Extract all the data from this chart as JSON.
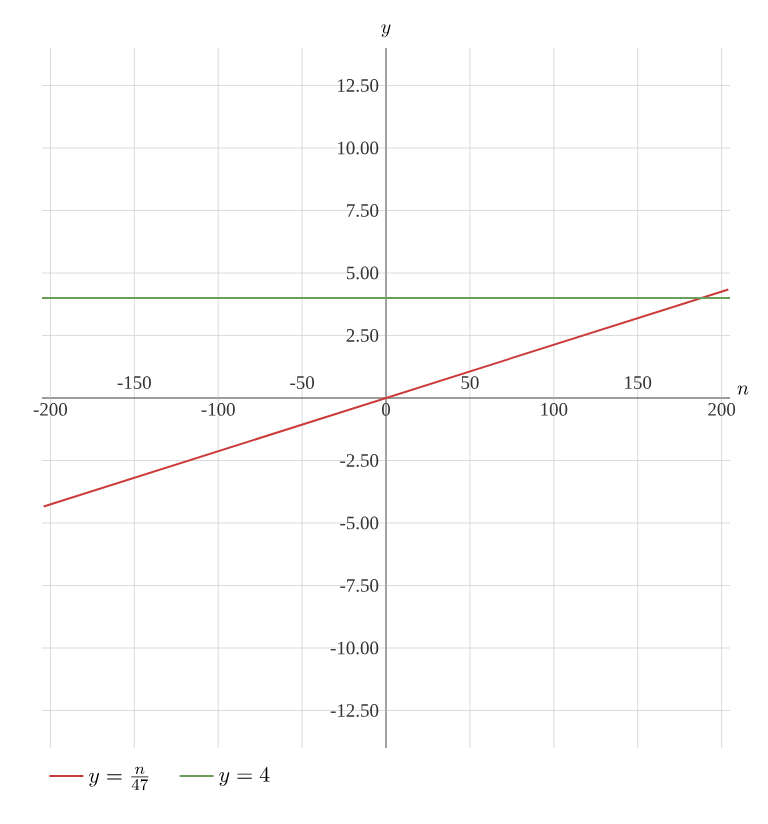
{
  "chart_data": {
    "type": "line",
    "xlabel": "n",
    "ylabel": "y",
    "xlim": [
      -205,
      205
    ],
    "ylim": [
      -14,
      14
    ],
    "xticks": [
      -200,
      -100,
      0,
      100,
      200
    ],
    "x2lim": [
      -205,
      205
    ],
    "x2ticks": [
      -150,
      -50,
      50,
      150
    ],
    "yticks": [
      {
        "value": -12.5,
        "label": "-12.50"
      },
      {
        "value": -10,
        "label": "-10.00"
      },
      {
        "value": -7.5,
        "label": "-7.50"
      },
      {
        "value": -5,
        "label": "-5.00"
      },
      {
        "value": -2.5,
        "label": "-2.50"
      },
      {
        "value": 2.5,
        "label": "2.50"
      },
      {
        "value": 5,
        "label": "5.00"
      },
      {
        "value": 7.5,
        "label": "7.50"
      },
      {
        "value": 10,
        "label": "10.00"
      },
      {
        "value": 12.5,
        "label": "12.50"
      }
    ],
    "grid": true,
    "legend": "bottom left",
    "line_style": "solid",
    "series": [
      {
        "name": "y=\\frac{n}{47}",
        "color": "#cc3b3b",
        "x": [
          -204,
          204
        ],
        "values": [
          -4.34,
          4.34
        ]
      },
      {
        "name": "y=4",
        "color": "#6a9e5a",
        "x": [
          -205,
          205
        ],
        "values": [
          4,
          4
        ]
      }
    ]
  }
}
